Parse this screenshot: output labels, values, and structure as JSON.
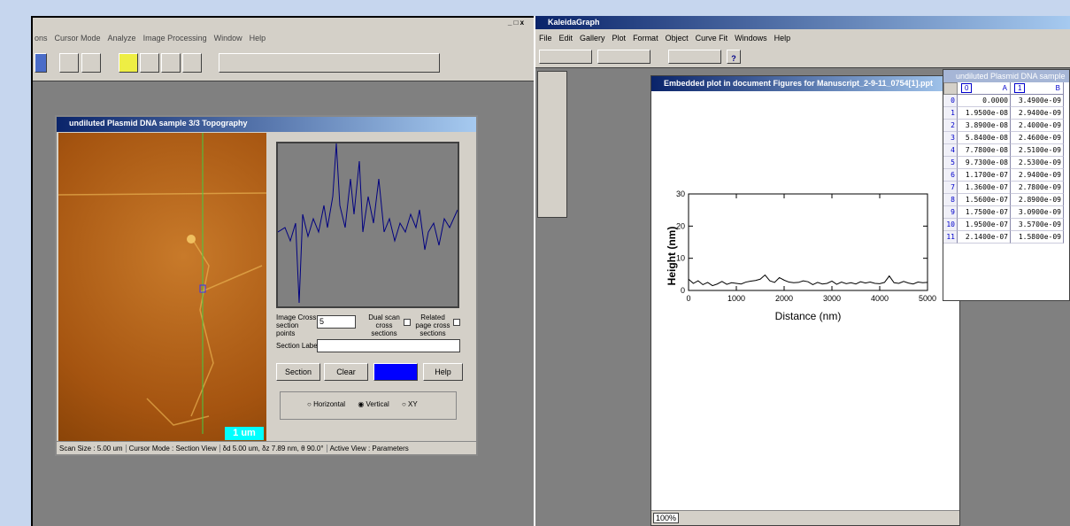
{
  "left_app": {
    "menu": [
      "ons",
      "Cursor Mode",
      "Analyze",
      "Image Processing",
      "Window",
      "Help"
    ],
    "window": {
      "title": "undiluted Plasmid DNA sample 3/3 Topography",
      "scale_bar": "1 um",
      "cross_label": "Image Cross section points",
      "cross_value": "5",
      "dual_label": "Dual scan cross sections",
      "related_label": "Related page cross sections",
      "section_label": "Section Label",
      "buttons": [
        "Section",
        "Clear",
        "Help"
      ],
      "radios": [
        "Horizontal",
        "Vertical",
        "XY"
      ],
      "status": [
        "Scan Size : 5.00 um",
        "Cursor Mode : Section View",
        "δd 5.00 um, δz 7.89 nm, θ 90.0°",
        "Active View : Parameters"
      ]
    }
  },
  "kaleidagraph": {
    "title": "KaleidaGraph",
    "menu": [
      "File",
      "Edit",
      "Gallery",
      "Plot",
      "Format",
      "Object",
      "Curve Fit",
      "Windows",
      "Help"
    ],
    "plot_window": {
      "title": "Embedded plot in document Figures for Manuscript_2-9-11_0754[1].ppt",
      "zoom": "100%"
    },
    "data_window": {
      "title": "undiluted Plasmid DNA sample",
      "columns": [
        [
          "0",
          "A"
        ],
        [
          "1",
          "B"
        ]
      ],
      "rows": [
        [
          "0",
          "0.0000",
          "3.4900e-09"
        ],
        [
          "1",
          "1.9500e-08",
          "2.9400e-09"
        ],
        [
          "2",
          "3.8900e-08",
          "2.4000e-09"
        ],
        [
          "3",
          "5.8400e-08",
          "2.4600e-09"
        ],
        [
          "4",
          "7.7800e-08",
          "2.5100e-09"
        ],
        [
          "5",
          "9.7300e-08",
          "2.5300e-09"
        ],
        [
          "6",
          "1.1700e-07",
          "2.9400e-09"
        ],
        [
          "7",
          "1.3600e-07",
          "2.7800e-09"
        ],
        [
          "8",
          "1.5600e-07",
          "2.8900e-09"
        ],
        [
          "9",
          "1.7500e-07",
          "3.0900e-09"
        ],
        [
          "10",
          "1.9500e-07",
          "3.5700e-09"
        ],
        [
          "11",
          "2.1400e-07",
          "1.5800e-09"
        ]
      ]
    }
  },
  "chart_data": {
    "type": "line",
    "x_label": "Distance (nm)",
    "y_label": "Height (nm)",
    "x": [
      0,
      100,
      200,
      300,
      400,
      500,
      600,
      700,
      800,
      900,
      1000,
      1100,
      1200,
      1300,
      1400,
      1500,
      1600,
      1700,
      1800,
      1900,
      2000,
      2100,
      2200,
      2300,
      2400,
      2500,
      2600,
      2700,
      2800,
      2900,
      3000,
      3100,
      3200,
      3300,
      3400,
      3500,
      3600,
      3700,
      3800,
      3900,
      4000,
      4100,
      4200,
      4300,
      4400,
      4500,
      4600,
      4700,
      4800,
      4900,
      5000
    ],
    "series": [
      {
        "name": "Height",
        "color": "#000000",
        "values": [
          3.5,
          2.2,
          3,
          1.8,
          2.5,
          1.5,
          2,
          2.8,
          1.9,
          2.4,
          2.2,
          2,
          2.6,
          2.9,
          3.1,
          3.5,
          4.8,
          3,
          2.5,
          4,
          3.2,
          2.6,
          2.4,
          2.5,
          3,
          2.7,
          1.8,
          2.5,
          2,
          2.2,
          2.9,
          1.9,
          2.6,
          2.1,
          2.4,
          2,
          2.7,
          2.3,
          2.6,
          2.2,
          2.1,
          2.5,
          4.5,
          2.4,
          2.2,
          2.8,
          2.3,
          2,
          2.6,
          2.4,
          2.5
        ]
      }
    ],
    "xlim": [
      0,
      5000
    ],
    "xticks": [
      0,
      1000,
      2000,
      3000,
      4000,
      5000
    ],
    "ylim": [
      0,
      30
    ],
    "yticks": [
      0,
      10,
      20,
      30
    ]
  }
}
